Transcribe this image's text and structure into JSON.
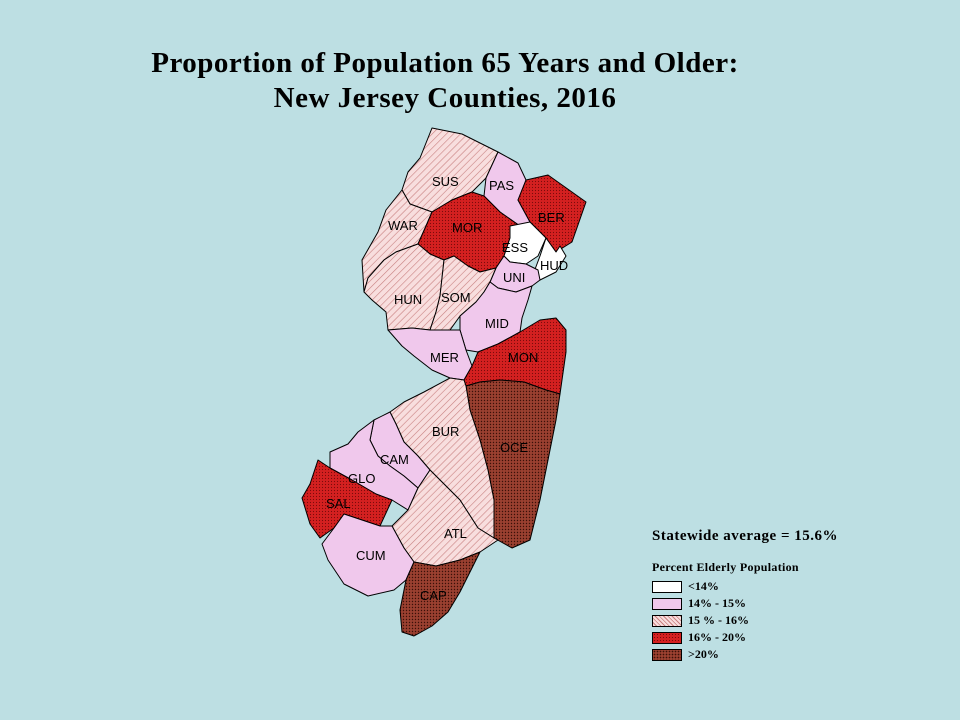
{
  "title": {
    "line1": "Proportion of Population 65 Years and Older:",
    "line2": "New Jersey Counties, 2016"
  },
  "statewide": "Statewide average = 15.6%",
  "legend": {
    "title": "Percent Elderly Population",
    "items": [
      {
        "label": "<14%",
        "color": "#ffffff"
      },
      {
        "label": "14% - 15%",
        "color": "#f0c8ec"
      },
      {
        "label": "15 % - 16%",
        "color": "#f5d5d5"
      },
      {
        "label": "16% - 20%",
        "color": "#d42020"
      },
      {
        "label": ">20%",
        "color": "#8a3a28"
      }
    ]
  },
  "counties": [
    {
      "label": "SUS",
      "category": 2
    },
    {
      "label": "PAS",
      "category": 1
    },
    {
      "label": "BER",
      "category": 3
    },
    {
      "label": "WAR",
      "category": 2
    },
    {
      "label": "MOR",
      "category": 3
    },
    {
      "label": "ESS",
      "category": 0
    },
    {
      "label": "HUD",
      "category": 0
    },
    {
      "label": "UNI",
      "category": 1
    },
    {
      "label": "HUN",
      "category": 2
    },
    {
      "label": "SOM",
      "category": 2
    },
    {
      "label": "MID",
      "category": 1
    },
    {
      "label": "MER",
      "category": 1
    },
    {
      "label": "MON",
      "category": 3
    },
    {
      "label": "OCE",
      "category": 4
    },
    {
      "label": "BUR",
      "category": 2
    },
    {
      "label": "CAM",
      "category": 1
    },
    {
      "label": "GLO",
      "category": 1
    },
    {
      "label": "SAL",
      "category": 3
    },
    {
      "label": "ATL",
      "category": 2
    },
    {
      "label": "CUM",
      "category": 1
    },
    {
      "label": "CAP",
      "category": 4
    }
  ]
}
